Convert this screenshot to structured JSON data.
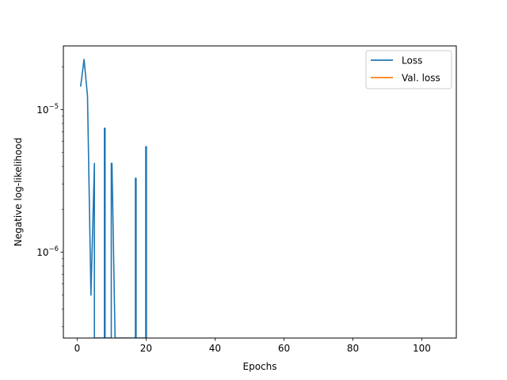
{
  "chart_data": {
    "type": "line",
    "title": "",
    "xlabel": "Epochs",
    "ylabel": "Negative log-likelihood",
    "yscale": "log",
    "xlim": [
      -4,
      110
    ],
    "ylim": [
      2.5e-07,
      2.8e-05
    ],
    "x_ticks": [
      0,
      20,
      40,
      60,
      80,
      100
    ],
    "x_tick_labels": [
      "0",
      "20",
      "40",
      "60",
      "80",
      "100"
    ],
    "y_ticks": [
      1e-06,
      1e-05
    ],
    "y_tick_base": "10",
    "y_tick_exponents": [
      "−6",
      "−5"
    ],
    "grid": false,
    "legend": {
      "placement": "top-right",
      "entries": [
        "Loss",
        "Val. loss"
      ]
    },
    "series": [
      {
        "name": "Loss",
        "color": "#1f77b4",
        "points": [
          [
            1,
            1.45e-05
          ],
          [
            2,
            2.25e-05
          ],
          [
            3,
            1.25e-05
          ],
          [
            4,
            5e-07
          ],
          [
            5,
            4.2e-06
          ],
          [
            5,
            2.5e-07
          ],
          [
            7.9,
            2.5e-07
          ],
          [
            7.9,
            7.4e-06
          ],
          [
            8.1,
            7.4e-06
          ],
          [
            8.1,
            2.5e-07
          ],
          [
            9.9,
            2.5e-07
          ],
          [
            9.9,
            4.2e-06
          ],
          [
            10.1,
            4.2e-06
          ],
          [
            11,
            2.5e-07
          ],
          [
            16.9,
            2.5e-07
          ],
          [
            16.9,
            3.3e-06
          ],
          [
            17.1,
            3.3e-06
          ],
          [
            17.1,
            2.5e-07
          ],
          [
            19.9,
            2.5e-07
          ],
          [
            19.9,
            5.5e-06
          ],
          [
            20.1,
            5.5e-06
          ],
          [
            20.1,
            2.5e-07
          ]
        ]
      },
      {
        "name": "Val. loss",
        "color": "#ff7f0e",
        "points": []
      }
    ]
  }
}
